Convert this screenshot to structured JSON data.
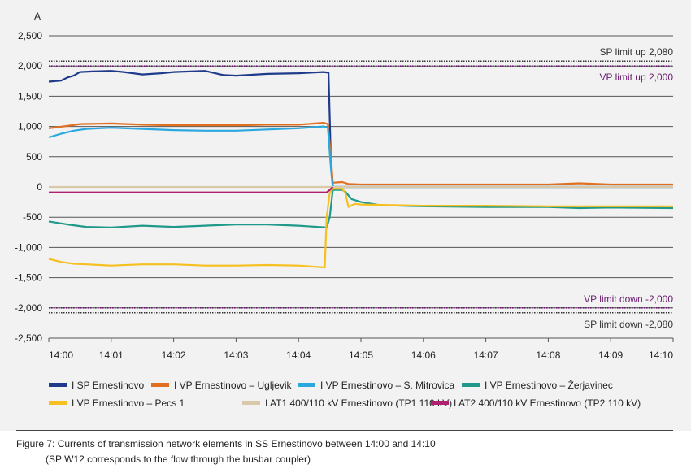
{
  "chart_data": {
    "type": "line",
    "ylabel": "A",
    "ylim": [
      -2500,
      2500
    ],
    "y_ticks": [
      2500,
      2000,
      1500,
      1000,
      500,
      0,
      -500,
      -1000,
      -1500,
      -2000,
      -2500
    ],
    "y_tick_labels": [
      "2,500",
      "2,000",
      "1,500",
      "1,000",
      "500",
      "0",
      "-500",
      "-1,000",
      "-1,500",
      "-2,000",
      "-2,500"
    ],
    "xlim": [
      0,
      10
    ],
    "x_ticks": [
      "14:00",
      "14:01",
      "14:02",
      "14:03",
      "14:04",
      "14:05",
      "14:06",
      "14:07",
      "14:08",
      "14:09",
      "14:10"
    ],
    "x_unit": "minutes after 14:00",
    "grid": true,
    "legend_position": "bottom",
    "limits": [
      {
        "label": "SP limit up 2,080",
        "value": 2080,
        "color": "#333333"
      },
      {
        "label": "VP limit up 2,000",
        "value": 2000,
        "color": "#6a1b6e"
      },
      {
        "label": "VP limit down -2,000",
        "value": -2000,
        "color": "#6a1b6e"
      },
      {
        "label": "SP limit down -2,080",
        "value": -2080,
        "color": "#333333"
      }
    ],
    "series": [
      {
        "name": "I SP Ernestinovo",
        "color": "#1f3a8a",
        "x": [
          0,
          0.2,
          0.3,
          0.4,
          0.5,
          0.7,
          1.0,
          1.2,
          1.5,
          1.8,
          2.0,
          2.5,
          2.8,
          3.0,
          3.5,
          4.0,
          4.4,
          4.48,
          4.52,
          4.55,
          5.0,
          6.0,
          7.0,
          8.0,
          9.0,
          10.0
        ],
        "y": [
          1740,
          1760,
          1810,
          1840,
          1900,
          1910,
          1920,
          1900,
          1860,
          1880,
          1900,
          1920,
          1850,
          1840,
          1870,
          1880,
          1900,
          1890,
          400,
          0,
          0,
          0,
          0,
          0,
          0,
          0
        ]
      },
      {
        "name": "I VP Ernestinovo – Ugljevik",
        "color": "#e07020",
        "x": [
          0,
          0.3,
          0.5,
          1.0,
          1.5,
          2.0,
          2.5,
          3.0,
          3.5,
          4.0,
          4.4,
          4.47,
          4.52,
          4.55,
          4.7,
          4.8,
          5.0,
          6.0,
          7.0,
          8.0,
          8.5,
          9.0,
          10.0
        ],
        "y": [
          970,
          1010,
          1040,
          1050,
          1030,
          1020,
          1020,
          1020,
          1030,
          1030,
          1060,
          1040,
          500,
          70,
          80,
          50,
          40,
          40,
          40,
          40,
          60,
          40,
          40
        ]
      },
      {
        "name": "I VP Ernestinovo – S. Mitrovica",
        "color": "#2aa8e0",
        "x": [
          0,
          0.2,
          0.4,
          0.6,
          1.0,
          1.5,
          2.0,
          2.5,
          3.0,
          3.5,
          4.0,
          4.4,
          4.47,
          4.52,
          4.55,
          5.0,
          6.0,
          7.0,
          8.0,
          9.0,
          10.0
        ],
        "y": [
          820,
          880,
          930,
          960,
          980,
          960,
          940,
          930,
          930,
          950,
          970,
          1000,
          980,
          300,
          0,
          0,
          0,
          0,
          0,
          0,
          0
        ]
      },
      {
        "name": "I VP Ernestinovo – Žerjavinec",
        "color": "#1f9a8a",
        "x": [
          0,
          0.3,
          0.6,
          1.0,
          1.5,
          2.0,
          2.5,
          3.0,
          3.5,
          4.0,
          4.45,
          4.5,
          4.55,
          4.7,
          4.75,
          4.85,
          5.0,
          5.3,
          6.0,
          7.0,
          8.0,
          8.5,
          9.0,
          10.0
        ],
        "y": [
          -570,
          -620,
          -660,
          -670,
          -640,
          -660,
          -640,
          -620,
          -620,
          -640,
          -670,
          -500,
          -50,
          -50,
          -80,
          -200,
          -250,
          -300,
          -320,
          -330,
          -330,
          -350,
          -340,
          -350
        ]
      },
      {
        "name": "I VP Ernestinovo – Pecs 1",
        "color": "#f5c020",
        "x": [
          0,
          0.2,
          0.4,
          0.6,
          1.0,
          1.5,
          2.0,
          2.5,
          3.0,
          3.5,
          4.0,
          4.42,
          4.45,
          4.5,
          4.55,
          4.7,
          4.75,
          4.8,
          4.9,
          5.0,
          5.5,
          6.0,
          7.0,
          8.0,
          9.0,
          10.0
        ],
        "y": [
          -1190,
          -1240,
          -1270,
          -1280,
          -1300,
          -1280,
          -1280,
          -1300,
          -1300,
          -1290,
          -1300,
          -1330,
          -500,
          -100,
          -30,
          -30,
          -100,
          -330,
          -280,
          -290,
          -300,
          -310,
          -310,
          -320,
          -320,
          -320
        ]
      },
      {
        "name": "I AT1 400/110 kV Ernestinovo (TP1 110 kV)",
        "color": "#d9c9a8",
        "x": [
          0,
          10
        ],
        "y": [
          0,
          0
        ]
      },
      {
        "name": "I AT2 400/110 kV Ernestinovo (TP2 110 kV)",
        "color": "#b0206e",
        "x": [
          0,
          4.45,
          4.5,
          4.55
        ],
        "y": [
          -90,
          -90,
          -50,
          0
        ]
      }
    ]
  },
  "caption": {
    "line1": "Figure 7: Currents of transmission network elements in SS Ernestinovo between 14:00 and 14:10",
    "line2": "(SP W12 corresponds to the flow through the busbar coupler)"
  }
}
